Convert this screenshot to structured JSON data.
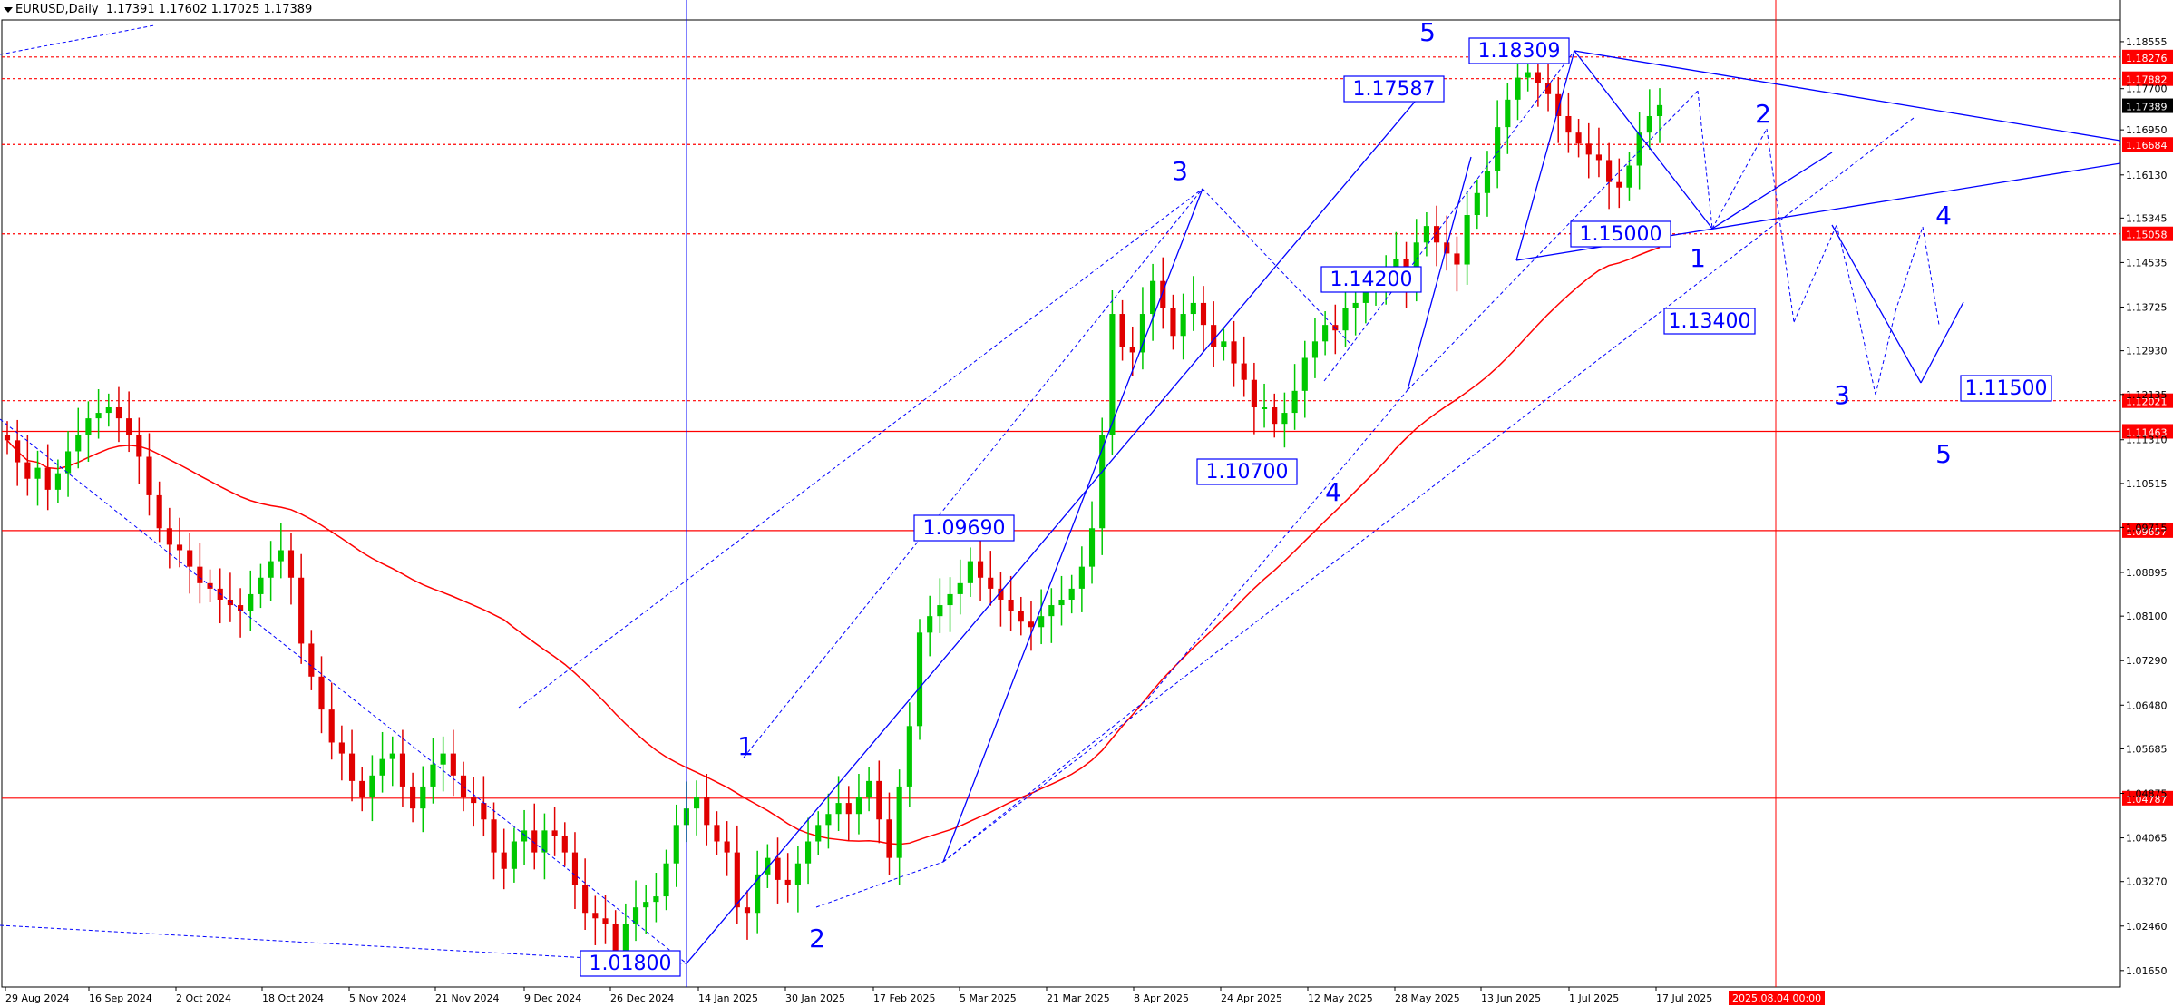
{
  "header": {
    "symbol": "EURUSD,Daily",
    "ohlc": "1.17391 1.17602 1.17025 1.17389"
  },
  "colors": {
    "bull": "#00c800",
    "bear": "#e00000",
    "ma": "#ff0000",
    "blue": "#0000ff",
    "level": "#ff0000",
    "price_box_bg": "#ff0000",
    "current_box_bg": "#000000"
  },
  "chart_data": {
    "type": "candlestick",
    "x_ticks": [
      "29 Aug 2024",
      "16 Sep 2024",
      "2 Oct 2024",
      "18 Oct 2024",
      "5 Nov 2024",
      "21 Nov 2024",
      "9 Dec 2024",
      "26 Dec 2024",
      "14 Jan 2025",
      "30 Jan 2025",
      "17 Feb 2025",
      "5 Mar 2025",
      "21 Mar 2025",
      "8 Apr 2025",
      "24 Apr 2025",
      "12 May 2025",
      "28 May 2025",
      "13 Jun 2025",
      "1 Jul 2025",
      "17 Jul 2025"
    ],
    "x_highlight": "2025.08.04 00:00",
    "y_ticks": [
      "1.18555",
      "1.17700",
      "1.16950",
      "1.16130",
      "1.15345",
      "1.14535",
      "1.13725",
      "1.12930",
      "1.12135",
      "1.11310",
      "1.10515",
      "1.09715",
      "1.08895",
      "1.08100",
      "1.07290",
      "1.06480",
      "1.05685",
      "1.04875",
      "1.04065",
      "1.03270",
      "1.02460",
      "1.01650"
    ],
    "y_range": [
      1.0135,
      1.1895
    ],
    "levels": [
      {
        "price": 1.18276,
        "style": "dotted",
        "label": "1.18276"
      },
      {
        "price": 1.17882,
        "style": "dotted",
        "label": "1.17882"
      },
      {
        "price": 1.16684,
        "style": "dotted",
        "label": "1.16684"
      },
      {
        "price": 1.15058,
        "style": "dotted",
        "label": "1.15058"
      },
      {
        "price": 1.12021,
        "style": "dotted",
        "label": "1.12021"
      },
      {
        "price": 1.11463,
        "style": "solid",
        "label": "1.11463"
      },
      {
        "price": 1.09657,
        "style": "solid",
        "label": "1.09657"
      },
      {
        "price": 1.04787,
        "style": "solid",
        "label": "1.04787"
      }
    ],
    "current_price": "1.17389",
    "annotations": [
      {
        "text": "1.01800",
        "boxed": true
      },
      {
        "text": "1.09690",
        "boxed": true
      },
      {
        "text": "1.17587",
        "boxed": true
      },
      {
        "text": "1.18309",
        "boxed": true
      },
      {
        "text": "1.14200",
        "boxed": true
      },
      {
        "text": "1.10700",
        "boxed": true
      },
      {
        "text": "1.15000",
        "boxed": true
      },
      {
        "text": "1.13400",
        "boxed": true
      },
      {
        "text": "1.11500",
        "boxed": true
      }
    ],
    "wave_labels": [
      "1",
      "2",
      "3",
      "4",
      "5",
      "1",
      "2",
      "3",
      "4",
      "5"
    ],
    "series": [
      {
        "name": "",
        "values": [
          1.113,
          1.109,
          1.106,
          1.108,
          1.104,
          1.107,
          1.111,
          1.114,
          1.117,
          1.118,
          1.119,
          1.117,
          1.114,
          1.11,
          1.103,
          1.097,
          1.094,
          1.093,
          1.09,
          1.087,
          1.086,
          1.084,
          1.083,
          1.082,
          1.085,
          1.088,
          1.091,
          1.093,
          1.088,
          1.076,
          1.07,
          1.064,
          1.058,
          1.056,
          1.051,
          1.048,
          1.052,
          1.055,
          1.056,
          1.05,
          1.046,
          1.05,
          1.054,
          1.056,
          1.052,
          1.048,
          1.047,
          1.044,
          1.038,
          1.035,
          1.04,
          1.042,
          1.038,
          1.042,
          1.041,
          1.038,
          1.032,
          1.027,
          1.026,
          1.025,
          1.02,
          1.025,
          1.028,
          1.029,
          1.03,
          1.036,
          1.043,
          1.046,
          1.048,
          1.043,
          1.04,
          1.038,
          1.028,
          1.027,
          1.034,
          1.037,
          1.033,
          1.032,
          1.036,
          1.04,
          1.043,
          1.045,
          1.047,
          1.045,
          1.048,
          1.051,
          1.044,
          1.037,
          1.05,
          1.061,
          1.078,
          1.081,
          1.083,
          1.085,
          1.087,
          1.091,
          1.088,
          1.086,
          1.084,
          1.082,
          1.08,
          1.079,
          1.081,
          1.083,
          1.084,
          1.086,
          1.09,
          1.097,
          1.114,
          1.136,
          1.13,
          1.129,
          1.136,
          1.142,
          1.137,
          1.132,
          1.136,
          1.138,
          1.134,
          1.13,
          1.131,
          1.127,
          1.124,
          1.119,
          1.119,
          1.116,
          1.118,
          1.122,
          1.128,
          1.131,
          1.134,
          1.133,
          1.137,
          1.138,
          1.14,
          1.142,
          1.143,
          1.146,
          1.142,
          1.149,
          1.152,
          1.149,
          1.147,
          1.145,
          1.154,
          1.158,
          1.162,
          1.17,
          1.175,
          1.179,
          1.18,
          1.178,
          1.176,
          1.172,
          1.169,
          1.167,
          1.165,
          1.164,
          1.16,
          1.159,
          1.163,
          1.169,
          1.172,
          1.174
        ]
      }
    ]
  }
}
